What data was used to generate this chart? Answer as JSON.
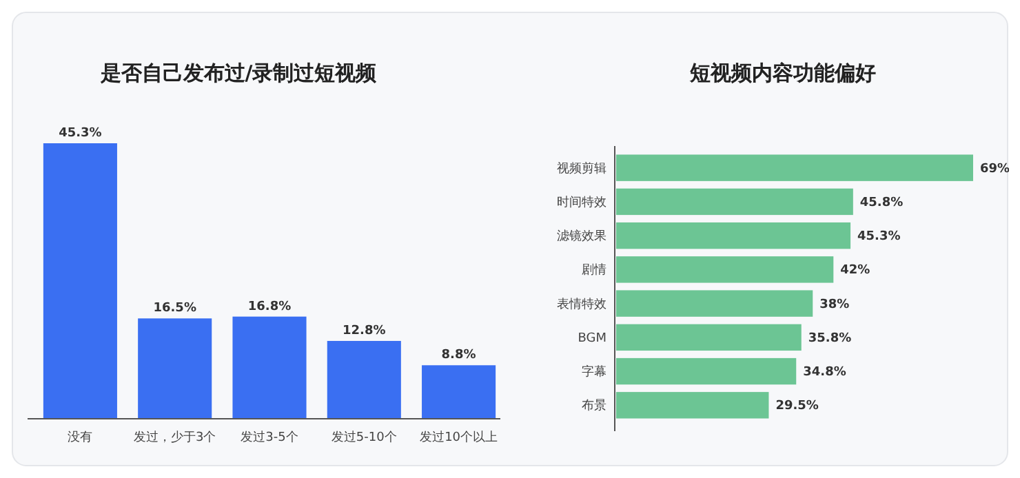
{
  "chart_data": [
    {
      "type": "bar",
      "title": "是否自己发布过/录制过短视频",
      "categories": [
        "没有",
        "发过，少于3个",
        "发过3-5个",
        "发过5-10个",
        "发过10个以上"
      ],
      "values": [
        45.3,
        16.5,
        16.8,
        12.8,
        8.8
      ],
      "color": "#3a6ff2",
      "value_labels": [
        "45.3%",
        "16.5%",
        "16.8%",
        "12.8%",
        "8.8%"
      ]
    },
    {
      "type": "bar",
      "orientation": "horizontal",
      "title": "短视频内容功能偏好",
      "categories": [
        "视频剪辑",
        "时间特效",
        "滤镜效果",
        "剧情",
        "表情特效",
        "BGM",
        "字幕",
        "布景"
      ],
      "values": [
        69,
        45.8,
        45.3,
        42,
        38,
        35.8,
        34.8,
        29.5
      ],
      "color": "#6cc594",
      "value_labels": [
        "69%",
        "45.8%",
        "45.3%",
        "42%",
        "38%",
        "35.8%",
        "34.8%",
        "29.5%"
      ]
    }
  ]
}
